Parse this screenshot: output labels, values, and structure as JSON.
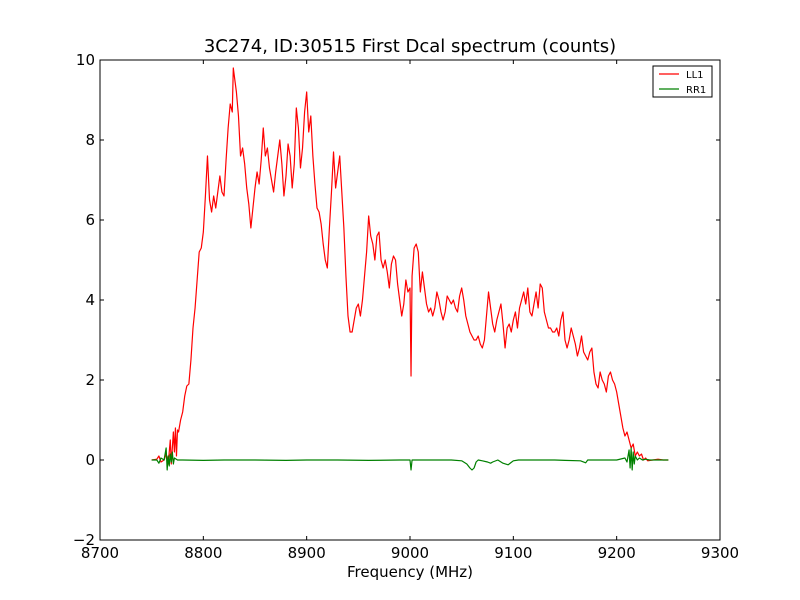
{
  "chart_data": {
    "type": "line",
    "title": "3C274, ID:30515 First Dcal spectrum (counts)",
    "xlabel": "Frequency (MHz)",
    "ylabel": "",
    "xlim": [
      8700,
      9300
    ],
    "ylim": [
      -2,
      10
    ],
    "xticks": [
      8700,
      8800,
      8900,
      9000,
      9100,
      9200,
      9300
    ],
    "yticks": [
      -2,
      0,
      2,
      4,
      6,
      8,
      10
    ],
    "xtick_labels": [
      "8700",
      "8800",
      "8900",
      "9000",
      "9100",
      "9200",
      "9300"
    ],
    "ytick_labels": [
      "−2",
      "0",
      "2",
      "4",
      "6",
      "8",
      "10"
    ],
    "grid": false,
    "legend_position": "top-right",
    "series": [
      {
        "name": "LL1",
        "color": "#ff0000",
        "points": [
          [
            8750,
            0.0
          ],
          [
            8755,
            0.02
          ],
          [
            8757,
            0.1
          ],
          [
            8759,
            -0.05
          ],
          [
            8762,
            0.0
          ],
          [
            8764,
            0.15
          ],
          [
            8766,
            -0.1
          ],
          [
            8768,
            0.5
          ],
          [
            8769,
            -0.1
          ],
          [
            8771,
            0.7
          ],
          [
            8772,
            0.2
          ],
          [
            8773,
            0.8
          ],
          [
            8774,
            0.1
          ],
          [
            8775,
            0.75
          ],
          [
            8776,
            0.7
          ],
          [
            8778,
            1.0
          ],
          [
            8780,
            1.2
          ],
          [
            8782,
            1.6
          ],
          [
            8784,
            1.85
          ],
          [
            8786,
            1.9
          ],
          [
            8788,
            2.5
          ],
          [
            8790,
            3.3
          ],
          [
            8792,
            3.8
          ],
          [
            8794,
            4.5
          ],
          [
            8796,
            5.2
          ],
          [
            8798,
            5.3
          ],
          [
            8800,
            5.7
          ],
          [
            8802,
            6.6
          ],
          [
            8804,
            7.6
          ],
          [
            8806,
            6.5
          ],
          [
            8808,
            6.2
          ],
          [
            8810,
            6.6
          ],
          [
            8812,
            6.3
          ],
          [
            8814,
            6.7
          ],
          [
            8816,
            7.1
          ],
          [
            8818,
            6.7
          ],
          [
            8820,
            6.6
          ],
          [
            8822,
            7.5
          ],
          [
            8824,
            8.3
          ],
          [
            8826,
            8.9
          ],
          [
            8828,
            8.7
          ],
          [
            8829,
            9.8
          ],
          [
            8830,
            9.6
          ],
          [
            8832,
            9.2
          ],
          [
            8834,
            8.6
          ],
          [
            8836,
            7.6
          ],
          [
            8838,
            7.8
          ],
          [
            8840,
            7.4
          ],
          [
            8842,
            6.8
          ],
          [
            8844,
            6.4
          ],
          [
            8846,
            5.8
          ],
          [
            8848,
            6.3
          ],
          [
            8850,
            6.8
          ],
          [
            8852,
            7.2
          ],
          [
            8854,
            6.9
          ],
          [
            8856,
            7.5
          ],
          [
            8858,
            8.3
          ],
          [
            8860,
            7.6
          ],
          [
            8862,
            7.8
          ],
          [
            8864,
            7.3
          ],
          [
            8866,
            7.0
          ],
          [
            8868,
            6.7
          ],
          [
            8870,
            7.2
          ],
          [
            8872,
            7.6
          ],
          [
            8874,
            8.0
          ],
          [
            8876,
            7.4
          ],
          [
            8878,
            6.6
          ],
          [
            8880,
            7.1
          ],
          [
            8882,
            7.9
          ],
          [
            8884,
            7.6
          ],
          [
            8886,
            6.8
          ],
          [
            8888,
            7.4
          ],
          [
            8890,
            8.8
          ],
          [
            8892,
            8.3
          ],
          [
            8894,
            7.3
          ],
          [
            8896,
            7.8
          ],
          [
            8898,
            8.7
          ],
          [
            8900,
            9.2
          ],
          [
            8902,
            8.2
          ],
          [
            8904,
            8.6
          ],
          [
            8906,
            7.6
          ],
          [
            8908,
            6.9
          ],
          [
            8910,
            6.3
          ],
          [
            8912,
            6.2
          ],
          [
            8914,
            5.9
          ],
          [
            8916,
            5.4
          ],
          [
            8918,
            5.0
          ],
          [
            8920,
            4.8
          ],
          [
            8922,
            5.8
          ],
          [
            8924,
            6.7
          ],
          [
            8926,
            7.7
          ],
          [
            8928,
            6.8
          ],
          [
            8930,
            7.2
          ],
          [
            8932,
            7.6
          ],
          [
            8934,
            6.7
          ],
          [
            8936,
            5.8
          ],
          [
            8938,
            4.6
          ],
          [
            8940,
            3.6
          ],
          [
            8942,
            3.2
          ],
          [
            8944,
            3.2
          ],
          [
            8946,
            3.5
          ],
          [
            8948,
            3.8
          ],
          [
            8950,
            3.9
          ],
          [
            8952,
            3.6
          ],
          [
            8954,
            4.0
          ],
          [
            8956,
            4.6
          ],
          [
            8958,
            5.2
          ],
          [
            8960,
            6.1
          ],
          [
            8962,
            5.6
          ],
          [
            8964,
            5.4
          ],
          [
            8966,
            5.0
          ],
          [
            8968,
            5.6
          ],
          [
            8970,
            5.7
          ],
          [
            8972,
            5.0
          ],
          [
            8974,
            4.8
          ],
          [
            8976,
            5.0
          ],
          [
            8978,
            4.7
          ],
          [
            8980,
            4.3
          ],
          [
            8982,
            4.9
          ],
          [
            8984,
            5.1
          ],
          [
            8986,
            5.0
          ],
          [
            8988,
            4.4
          ],
          [
            8990,
            4.0
          ],
          [
            8992,
            3.6
          ],
          [
            8994,
            3.9
          ],
          [
            8996,
            4.5
          ],
          [
            8998,
            4.2
          ],
          [
            9000,
            4.3
          ],
          [
            9001,
            2.1
          ],
          [
            9002,
            4.6
          ],
          [
            9004,
            5.3
          ],
          [
            9006,
            5.4
          ],
          [
            9008,
            5.2
          ],
          [
            9010,
            4.2
          ],
          [
            9012,
            4.7
          ],
          [
            9014,
            4.3
          ],
          [
            9016,
            3.9
          ],
          [
            9018,
            3.7
          ],
          [
            9020,
            3.8
          ],
          [
            9022,
            3.6
          ],
          [
            9024,
            3.8
          ],
          [
            9026,
            4.2
          ],
          [
            9028,
            4.0
          ],
          [
            9030,
            3.7
          ],
          [
            9032,
            3.5
          ],
          [
            9034,
            3.7
          ],
          [
            9036,
            4.1
          ],
          [
            9038,
            4.0
          ],
          [
            9040,
            3.9
          ],
          [
            9042,
            4.0
          ],
          [
            9044,
            3.8
          ],
          [
            9046,
            3.7
          ],
          [
            9048,
            4.1
          ],
          [
            9050,
            4.3
          ],
          [
            9052,
            4.0
          ],
          [
            9054,
            3.6
          ],
          [
            9056,
            3.4
          ],
          [
            9058,
            3.2
          ],
          [
            9060,
            3.1
          ],
          [
            9062,
            3.0
          ],
          [
            9064,
            3.0
          ],
          [
            9066,
            3.1
          ],
          [
            9068,
            2.9
          ],
          [
            9070,
            2.8
          ],
          [
            9072,
            3.0
          ],
          [
            9074,
            3.6
          ],
          [
            9076,
            4.2
          ],
          [
            9078,
            3.8
          ],
          [
            9080,
            3.4
          ],
          [
            9082,
            3.2
          ],
          [
            9084,
            3.5
          ],
          [
            9086,
            3.7
          ],
          [
            9088,
            3.9
          ],
          [
            9090,
            3.4
          ],
          [
            9092,
            2.8
          ],
          [
            9094,
            3.3
          ],
          [
            9096,
            3.4
          ],
          [
            9098,
            3.2
          ],
          [
            9100,
            3.5
          ],
          [
            9102,
            3.7
          ],
          [
            9104,
            3.3
          ],
          [
            9106,
            3.8
          ],
          [
            9108,
            4.0
          ],
          [
            9110,
            4.2
          ],
          [
            9112,
            3.9
          ],
          [
            9114,
            4.3
          ],
          [
            9116,
            3.7
          ],
          [
            9118,
            3.6
          ],
          [
            9120,
            3.9
          ],
          [
            9122,
            4.2
          ],
          [
            9124,
            3.8
          ],
          [
            9126,
            4.4
          ],
          [
            9128,
            4.3
          ],
          [
            9130,
            3.7
          ],
          [
            9132,
            3.5
          ],
          [
            9134,
            3.3
          ],
          [
            9136,
            3.3
          ],
          [
            9138,
            3.2
          ],
          [
            9140,
            3.2
          ],
          [
            9142,
            3.3
          ],
          [
            9144,
            3.1
          ],
          [
            9146,
            3.5
          ],
          [
            9148,
            3.7
          ],
          [
            9150,
            3.0
          ],
          [
            9152,
            2.8
          ],
          [
            9154,
            3.0
          ],
          [
            9156,
            3.3
          ],
          [
            9158,
            3.1
          ],
          [
            9160,
            2.9
          ],
          [
            9162,
            2.6
          ],
          [
            9164,
            2.8
          ],
          [
            9166,
            3.1
          ],
          [
            9168,
            2.7
          ],
          [
            9170,
            2.6
          ],
          [
            9172,
            2.5
          ],
          [
            9174,
            2.7
          ],
          [
            9176,
            2.8
          ],
          [
            9178,
            2.2
          ],
          [
            9180,
            1.9
          ],
          [
            9182,
            1.8
          ],
          [
            9184,
            2.2
          ],
          [
            9186,
            2.0
          ],
          [
            9188,
            1.9
          ],
          [
            9190,
            1.7
          ],
          [
            9192,
            2.1
          ],
          [
            9194,
            2.2
          ],
          [
            9196,
            2.0
          ],
          [
            9198,
            1.9
          ],
          [
            9200,
            1.7
          ],
          [
            9202,
            1.4
          ],
          [
            9204,
            1.1
          ],
          [
            9206,
            0.8
          ],
          [
            9208,
            0.6
          ],
          [
            9210,
            0.7
          ],
          [
            9212,
            0.5
          ],
          [
            9214,
            0.3
          ],
          [
            9216,
            0.4
          ],
          [
            9218,
            0.1
          ],
          [
            9220,
            0.2
          ],
          [
            9222,
            0.1
          ],
          [
            9224,
            0.15
          ],
          [
            9226,
            0.0
          ],
          [
            9228,
            0.05
          ],
          [
            9230,
            -0.02
          ],
          [
            9235,
            0.0
          ],
          [
            9240,
            0.02
          ],
          [
            9245,
            0.0
          ],
          [
            9250,
            0.0
          ]
        ]
      },
      {
        "name": "RR1",
        "color": "#008000",
        "points": [
          [
            8750,
            0.0
          ],
          [
            8755,
            0.0
          ],
          [
            8757,
            -0.08
          ],
          [
            8759,
            0.05
          ],
          [
            8762,
            0.0
          ],
          [
            8764,
            0.3
          ],
          [
            8765,
            -0.25
          ],
          [
            8766,
            0.1
          ],
          [
            8767,
            -0.15
          ],
          [
            8768,
            0.15
          ],
          [
            8769,
            -0.05
          ],
          [
            8770,
            0.2
          ],
          [
            8771,
            -0.1
          ],
          [
            8772,
            0.05
          ],
          [
            8775,
            0.0
          ],
          [
            8780,
            0.0
          ],
          [
            8800,
            -0.01
          ],
          [
            8820,
            0.0
          ],
          [
            8850,
            0.0
          ],
          [
            8880,
            -0.01
          ],
          [
            8900,
            0.0
          ],
          [
            8930,
            0.0
          ],
          [
            8960,
            -0.01
          ],
          [
            8990,
            0.0
          ],
          [
            9000,
            0.0
          ],
          [
            9001,
            -0.25
          ],
          [
            9002,
            0.0
          ],
          [
            9020,
            0.0
          ],
          [
            9040,
            0.0
          ],
          [
            9050,
            -0.02
          ],
          [
            9055,
            -0.1
          ],
          [
            9058,
            -0.2
          ],
          [
            9060,
            -0.25
          ],
          [
            9062,
            -0.2
          ],
          [
            9064,
            -0.05
          ],
          [
            9066,
            0.0
          ],
          [
            9070,
            -0.02
          ],
          [
            9075,
            -0.05
          ],
          [
            9078,
            -0.08
          ],
          [
            9080,
            -0.05
          ],
          [
            9085,
            0.0
          ],
          [
            9090,
            -0.08
          ],
          [
            9095,
            -0.12
          ],
          [
            9098,
            -0.06
          ],
          [
            9100,
            -0.02
          ],
          [
            9105,
            0.0
          ],
          [
            9120,
            0.0
          ],
          [
            9140,
            0.0
          ],
          [
            9150,
            -0.01
          ],
          [
            9165,
            -0.02
          ],
          [
            9170,
            -0.07
          ],
          [
            9172,
            0.0
          ],
          [
            9190,
            0.0
          ],
          [
            9200,
            0.0
          ],
          [
            9208,
            0.05
          ],
          [
            9210,
            -0.05
          ],
          [
            9212,
            0.25
          ],
          [
            9213,
            -0.2
          ],
          [
            9214,
            0.3
          ],
          [
            9215,
            -0.25
          ],
          [
            9216,
            0.2
          ],
          [
            9217,
            -0.1
          ],
          [
            9218,
            0.1
          ],
          [
            9220,
            0.0
          ],
          [
            9222,
            0.05
          ],
          [
            9225,
            0.0
          ],
          [
            9228,
            0.02
          ],
          [
            9232,
            0.0
          ],
          [
            9240,
            0.0
          ],
          [
            9250,
            0.0
          ]
        ]
      }
    ]
  }
}
